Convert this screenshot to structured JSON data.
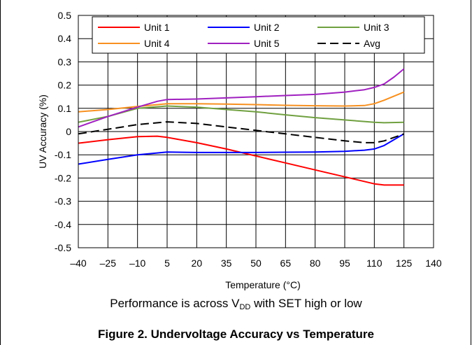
{
  "chart_data": {
    "type": "line",
    "xlabel": "Temperature (°C)",
    "ylabel": "UV Accuracy (%)",
    "xlim": [
      -40,
      140
    ],
    "ylim": [
      -0.5,
      0.5
    ],
    "x_ticks": [
      -40,
      -25,
      -10,
      5,
      20,
      35,
      50,
      65,
      80,
      95,
      110,
      125,
      140
    ],
    "x_tick_labels": [
      "–40",
      "–25",
      "–10",
      "5",
      "20",
      "35",
      "50",
      "65",
      "80",
      "95",
      "110",
      "125",
      "140"
    ],
    "y_ticks": [
      -0.5,
      -0.4,
      -0.3,
      -0.2,
      -0.1,
      0,
      0.1,
      0.2,
      0.3,
      0.4,
      0.5
    ],
    "y_tick_labels": [
      "-0.5",
      "-0.4",
      "-0.3",
      "-0.2",
      "-0.1",
      "0",
      "0.1",
      "0.2",
      "0.3",
      "0.4",
      "0.5"
    ],
    "grid": true,
    "legend_position": "top",
    "series": [
      {
        "name": "Unit 1",
        "color": "#ff0000",
        "dash": false,
        "x": [
          -40,
          -25,
          -10,
          0,
          5,
          20,
          35,
          50,
          65,
          80,
          95,
          110,
          115,
          125
        ],
        "y": [
          -0.05,
          -0.035,
          -0.022,
          -0.02,
          -0.025,
          -0.048,
          -0.075,
          -0.105,
          -0.135,
          -0.165,
          -0.195,
          -0.225,
          -0.23,
          -0.23
        ]
      },
      {
        "name": "Unit 2",
        "color": "#0000ff",
        "dash": false,
        "x": [
          -40,
          -25,
          -10,
          5,
          20,
          35,
          50,
          65,
          80,
          95,
          105,
          110,
          115,
          125
        ],
        "y": [
          -0.14,
          -0.12,
          -0.1,
          -0.088,
          -0.09,
          -0.09,
          -0.09,
          -0.089,
          -0.088,
          -0.085,
          -0.08,
          -0.075,
          -0.06,
          -0.01
        ]
      },
      {
        "name": "Unit 3",
        "color": "#70a040",
        "dash": false,
        "x": [
          -40,
          -25,
          -10,
          5,
          20,
          35,
          50,
          65,
          80,
          95,
          110,
          115,
          125
        ],
        "y": [
          0.04,
          0.065,
          0.1,
          0.11,
          0.105,
          0.095,
          0.085,
          0.072,
          0.06,
          0.05,
          0.04,
          0.038,
          0.04
        ]
      },
      {
        "name": "Unit 4",
        "color": "#f79020",
        "dash": false,
        "x": [
          -40,
          -25,
          -10,
          5,
          20,
          35,
          50,
          65,
          80,
          95,
          105,
          110,
          115,
          125
        ],
        "y": [
          0.085,
          0.095,
          0.108,
          0.12,
          0.12,
          0.118,
          0.116,
          0.113,
          0.111,
          0.11,
          0.112,
          0.12,
          0.135,
          0.17
        ]
      },
      {
        "name": "Unit 5",
        "color": "#a020c0",
        "dash": false,
        "x": [
          -40,
          -25,
          -10,
          0,
          5,
          20,
          35,
          50,
          65,
          80,
          95,
          105,
          110,
          115,
          120,
          125
        ],
        "y": [
          0.02,
          0.065,
          0.105,
          0.13,
          0.138,
          0.14,
          0.145,
          0.15,
          0.155,
          0.16,
          0.17,
          0.18,
          0.19,
          0.205,
          0.235,
          0.27
        ]
      },
      {
        "name": "Avg",
        "color": "#000000",
        "dash": true,
        "x": [
          -40,
          -25,
          -10,
          5,
          20,
          35,
          50,
          65,
          80,
          95,
          105,
          110,
          115,
          125
        ],
        "y": [
          -0.01,
          0.01,
          0.03,
          0.042,
          0.035,
          0.02,
          0.005,
          -0.01,
          -0.025,
          -0.04,
          -0.048,
          -0.048,
          -0.04,
          -0.01
        ]
      }
    ]
  },
  "captions": {
    "performance_prefix": "Performance is across V",
    "performance_subscript": "DD",
    "performance_suffix": " with SET high or low",
    "figure_title": "Figure 2. Undervoltage Accuracy vs Temperature"
  }
}
